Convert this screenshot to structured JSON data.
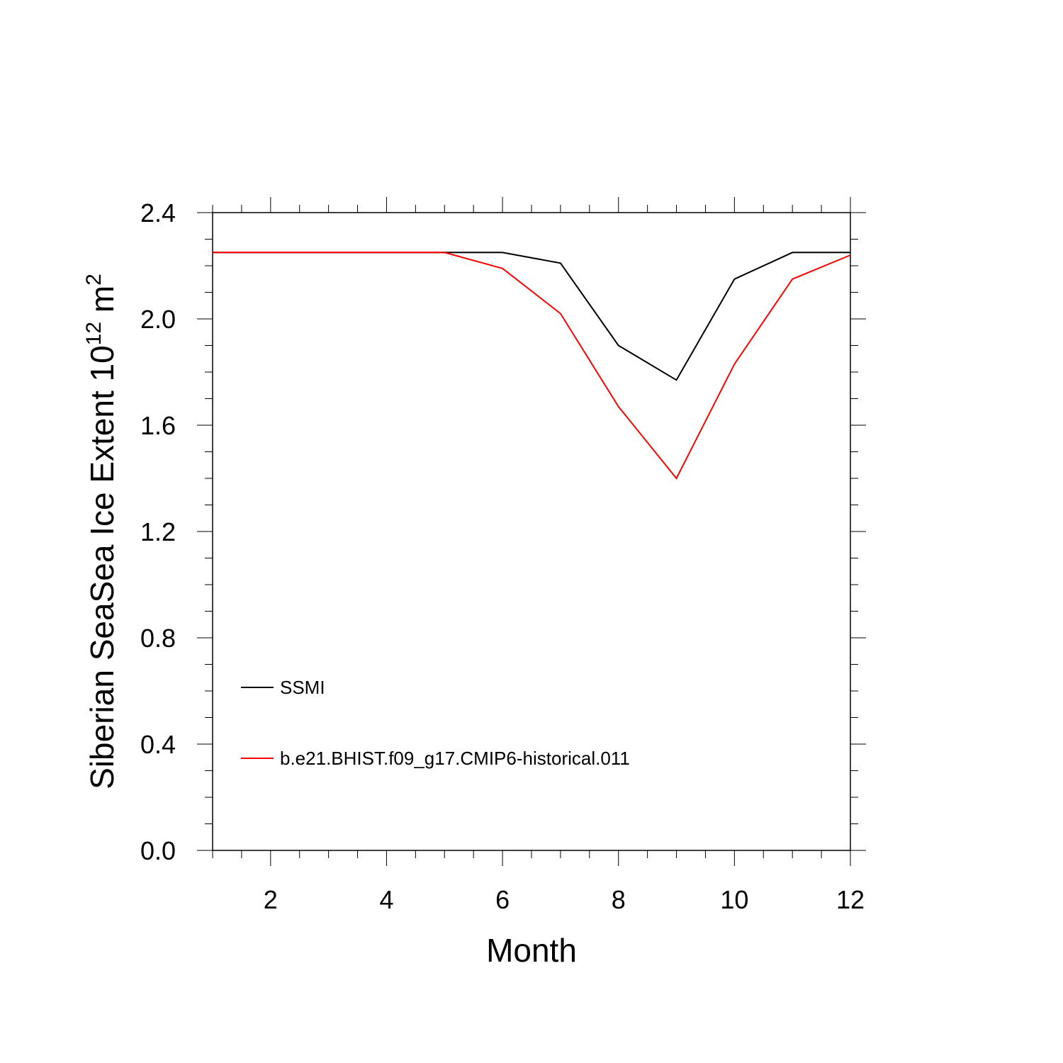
{
  "chart_data": {
    "type": "line",
    "title": "",
    "xlabel": "Month",
    "ylabel": {
      "prefix": "Siberian SeaSea Ice Extent 10",
      "exponent": "12",
      "unit": " m",
      "unit_exponent": "2"
    },
    "xlim": [
      1,
      12
    ],
    "ylim": [
      0,
      2.4
    ],
    "xticks": [
      2,
      4,
      6,
      8,
      10,
      12
    ],
    "xtick_labels": [
      "2",
      "4",
      "6",
      "8",
      "10",
      "12"
    ],
    "yticks": [
      0,
      0.4,
      0.8,
      1.2,
      1.6,
      2.0,
      2.4
    ],
    "ytick_labels": [
      "0.0",
      "0.4",
      "0.8",
      "1.2",
      "1.6",
      "2.0",
      "2.4"
    ],
    "grid": false,
    "legend_position": "lower-left",
    "x": [
      1,
      2,
      3,
      4,
      5,
      6,
      7,
      8,
      9,
      10,
      11,
      12
    ],
    "series": [
      {
        "name": "SSMI",
        "color": "#000000",
        "values": [
          2.25,
          2.25,
          2.25,
          2.25,
          2.25,
          2.25,
          2.21,
          1.9,
          1.77,
          2.15,
          2.25,
          2.25
        ]
      },
      {
        "name": "b.e21.BHIST.f09_g17.CMIP6-historical.011",
        "color": "#ff0000",
        "values": [
          2.25,
          2.25,
          2.25,
          2.25,
          2.25,
          2.19,
          2.02,
          1.67,
          1.4,
          1.83,
          2.15,
          2.24
        ]
      }
    ]
  }
}
